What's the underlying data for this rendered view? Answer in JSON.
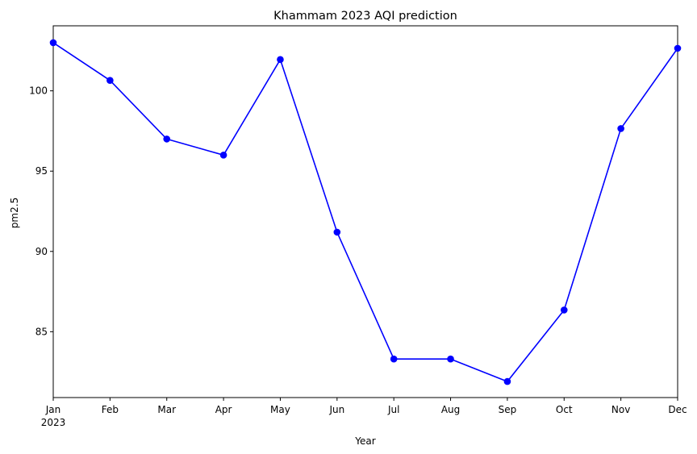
{
  "chart_data": {
    "type": "line",
    "title": "Khammam 2023 AQI prediction",
    "xlabel": "Year",
    "ylabel": "pm2.5",
    "year_label": "2023",
    "categories": [
      "Jan",
      "Feb",
      "Mar",
      "Apr",
      "May",
      "Jun",
      "Jul",
      "Aug",
      "Sep",
      "Oct",
      "Nov",
      "Dec"
    ],
    "series": [
      {
        "values": [
          103.0,
          100.65,
          97.0,
          96.0,
          101.95,
          91.2,
          83.3,
          83.3,
          81.9,
          86.35,
          97.65,
          102.65
        ],
        "color": "#0000ff",
        "marker": "circle"
      }
    ],
    "ylim": [
      80.9,
      104.05
    ],
    "yticks": [
      85,
      90,
      95,
      100
    ],
    "grid": false
  }
}
